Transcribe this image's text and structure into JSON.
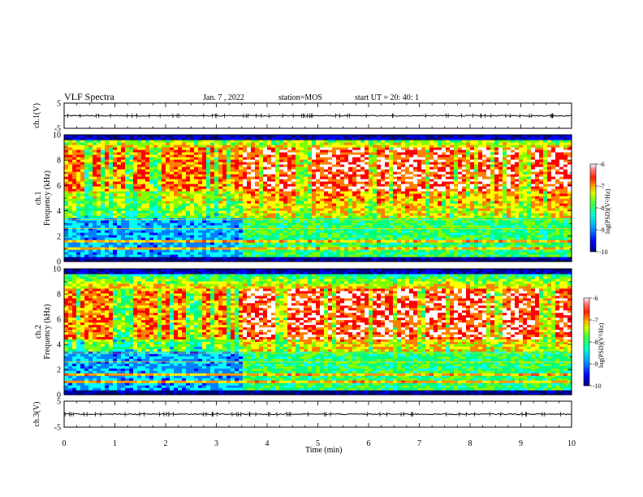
{
  "header": {
    "title": "VLF Spectra",
    "date": "Jan. 7 , 2022",
    "station": "station=MOS",
    "start_ut": "start  UT =   20: 40: 1"
  },
  "chart_data": [
    {
      "type": "line",
      "panel": "ch1-waveform",
      "ylabel": "ch.1(V)",
      "ylim": [
        -5,
        5
      ],
      "yticks": [
        "5",
        "-5"
      ],
      "xlim": [
        0,
        10
      ],
      "series_value_approx": 0
    },
    {
      "type": "heatmap",
      "panel": "ch1-spectrogram",
      "ylabel": "ch.1\nFrequency  (kHz)",
      "ylim": [
        0,
        10
      ],
      "yticks": [
        "0",
        "2",
        "4",
        "6",
        "8",
        "10"
      ],
      "xlim": [
        0,
        10
      ],
      "colorbar": {
        "label": "log(PSD)(V²/Hz)",
        "range": [
          -10,
          -6
        ],
        "ticks": [
          "-6",
          "-7",
          "-8",
          "-9",
          "-10"
        ]
      },
      "regime_change_min": 3.5,
      "intense_band_khz": [
        5.5,
        9.0
      ]
    },
    {
      "type": "heatmap",
      "panel": "ch2-spectrogram",
      "ylabel": "ch.2\nFrequency  (kHz)",
      "ylim": [
        0,
        10
      ],
      "yticks": [
        "0",
        "2",
        "4",
        "6",
        "8",
        "10"
      ],
      "xlim": [
        0,
        10
      ],
      "colorbar": {
        "label": "log(PSD)(V²/Hz)",
        "range": [
          -10,
          -6
        ],
        "ticks": [
          "-6",
          "-7",
          "-8",
          "-9",
          "-10"
        ]
      },
      "regime_change_min": 3.5,
      "intense_band_khz": [
        4.5,
        8.5
      ]
    },
    {
      "type": "line",
      "panel": "ch3-waveform",
      "ylabel": "ch.3(V)",
      "ylim": [
        -5,
        5
      ],
      "yticks": [
        "5",
        "-5"
      ],
      "xlim": [
        0,
        10
      ],
      "xlabel": "Time  (min)",
      "xticks": [
        "0",
        "1",
        "2",
        "3",
        "4",
        "5",
        "6",
        "7",
        "8",
        "9",
        "10"
      ],
      "series_value_approx": 0
    }
  ],
  "colors": {
    "colormap": [
      "#000080",
      "#0000ff",
      "#0080ff",
      "#00ffff",
      "#00ff80",
      "#80ff00",
      "#ffff00",
      "#ff8000",
      "#ff0000",
      "#ffffff"
    ]
  }
}
